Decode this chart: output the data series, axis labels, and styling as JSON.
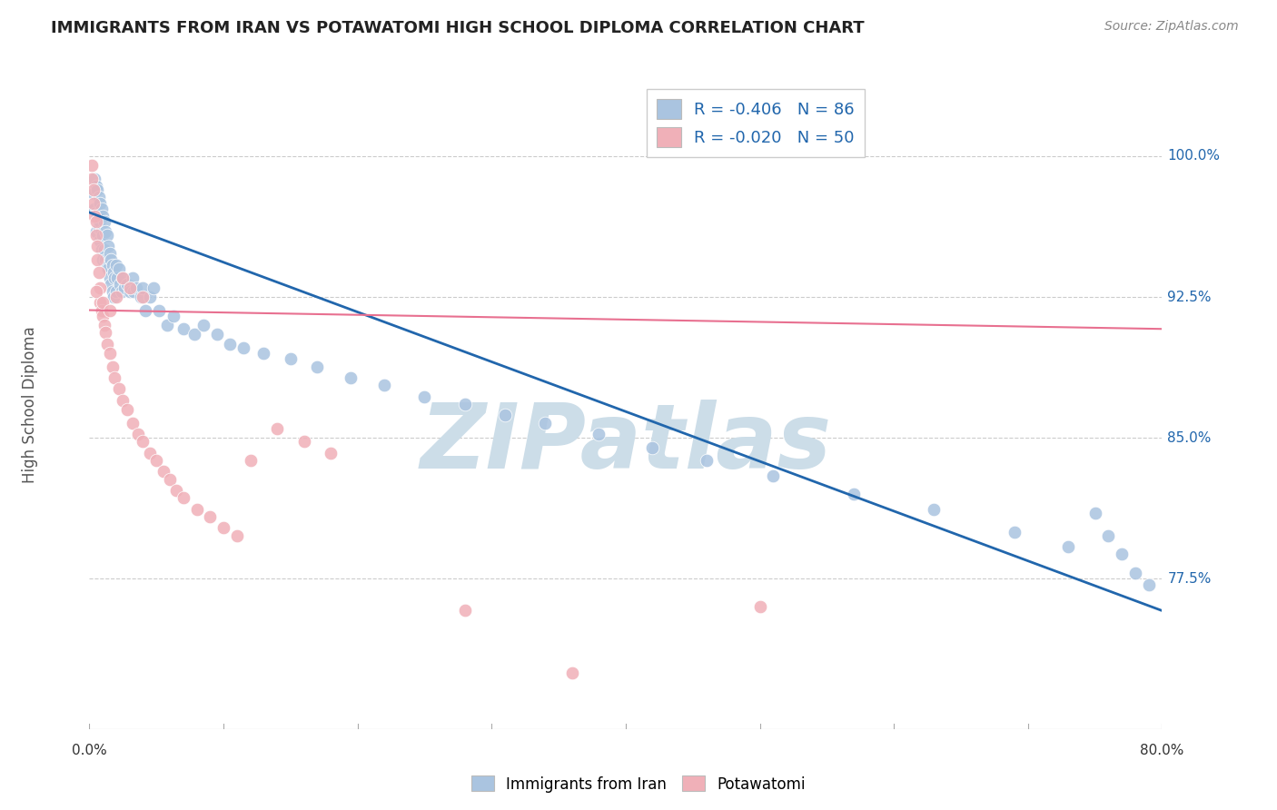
{
  "title": "IMMIGRANTS FROM IRAN VS POTAWATOMI HIGH SCHOOL DIPLOMA CORRELATION CHART",
  "source": "Source: ZipAtlas.com",
  "ylabel": "High School Diploma",
  "ytick_labels": [
    "100.0%",
    "92.5%",
    "85.0%",
    "77.5%"
  ],
  "ytick_values": [
    1.0,
    0.925,
    0.85,
    0.775
  ],
  "xtick_labels": [
    "0.0%",
    "80.0%"
  ],
  "xlim": [
    0.0,
    0.8
  ],
  "ylim": [
    0.695,
    1.04
  ],
  "background_color": "#ffffff",
  "grid_color": "#cccccc",
  "watermark_text": "ZIPatlas",
  "watermark_color": "#ccdde8",
  "legend_blue_label": "R = -0.406   N = 86",
  "legend_pink_label": "R = -0.020   N = 50",
  "blue_color": "#aac4e0",
  "pink_color": "#f0b0b8",
  "line_blue_color": "#2166ac",
  "line_pink_color": "#e87090",
  "text_color": "#2166ac",
  "blue_scatter_x": [
    0.003,
    0.004,
    0.004,
    0.005,
    0.005,
    0.005,
    0.006,
    0.006,
    0.007,
    0.007,
    0.007,
    0.008,
    0.008,
    0.008,
    0.009,
    0.009,
    0.009,
    0.01,
    0.01,
    0.01,
    0.011,
    0.011,
    0.012,
    0.012,
    0.013,
    0.013,
    0.014,
    0.014,
    0.015,
    0.015,
    0.016,
    0.016,
    0.017,
    0.017,
    0.018,
    0.018,
    0.019,
    0.02,
    0.02,
    0.021,
    0.022,
    0.023,
    0.024,
    0.025,
    0.026,
    0.028,
    0.03,
    0.032,
    0.033,
    0.035,
    0.038,
    0.04,
    0.042,
    0.045,
    0.048,
    0.052,
    0.058,
    0.063,
    0.07,
    0.078,
    0.085,
    0.095,
    0.105,
    0.115,
    0.13,
    0.15,
    0.17,
    0.195,
    0.22,
    0.25,
    0.28,
    0.31,
    0.34,
    0.38,
    0.42,
    0.46,
    0.51,
    0.57,
    0.63,
    0.69,
    0.73,
    0.75,
    0.76,
    0.77,
    0.78,
    0.79
  ],
  "blue_scatter_y": [
    0.98,
    0.988,
    0.972,
    0.984,
    0.97,
    0.96,
    0.982,
    0.968,
    0.978,
    0.97,
    0.962,
    0.975,
    0.965,
    0.955,
    0.972,
    0.96,
    0.95,
    0.968,
    0.958,
    0.945,
    0.965,
    0.95,
    0.96,
    0.945,
    0.958,
    0.942,
    0.952,
    0.94,
    0.948,
    0.935,
    0.945,
    0.932,
    0.942,
    0.928,
    0.938,
    0.925,
    0.935,
    0.942,
    0.928,
    0.935,
    0.94,
    0.932,
    0.928,
    0.935,
    0.93,
    0.932,
    0.928,
    0.935,
    0.928,
    0.93,
    0.925,
    0.93,
    0.918,
    0.925,
    0.93,
    0.918,
    0.91,
    0.915,
    0.908,
    0.905,
    0.91,
    0.905,
    0.9,
    0.898,
    0.895,
    0.892,
    0.888,
    0.882,
    0.878,
    0.872,
    0.868,
    0.862,
    0.858,
    0.852,
    0.845,
    0.838,
    0.83,
    0.82,
    0.812,
    0.8,
    0.792,
    0.81,
    0.798,
    0.788,
    0.778,
    0.772
  ],
  "pink_scatter_x": [
    0.002,
    0.002,
    0.003,
    0.003,
    0.004,
    0.005,
    0.005,
    0.006,
    0.006,
    0.007,
    0.008,
    0.008,
    0.009,
    0.01,
    0.011,
    0.012,
    0.013,
    0.015,
    0.017,
    0.019,
    0.022,
    0.025,
    0.028,
    0.032,
    0.036,
    0.04,
    0.045,
    0.05,
    0.055,
    0.06,
    0.065,
    0.07,
    0.08,
    0.09,
    0.1,
    0.11,
    0.12,
    0.14,
    0.16,
    0.18,
    0.005,
    0.01,
    0.015,
    0.02,
    0.025,
    0.03,
    0.04,
    0.28,
    0.36,
    0.5
  ],
  "pink_scatter_y": [
    0.995,
    0.988,
    0.982,
    0.975,
    0.968,
    0.965,
    0.958,
    0.952,
    0.945,
    0.938,
    0.93,
    0.922,
    0.918,
    0.915,
    0.91,
    0.906,
    0.9,
    0.895,
    0.888,
    0.882,
    0.876,
    0.87,
    0.865,
    0.858,
    0.852,
    0.848,
    0.842,
    0.838,
    0.832,
    0.828,
    0.822,
    0.818,
    0.812,
    0.808,
    0.802,
    0.798,
    0.838,
    0.855,
    0.848,
    0.842,
    0.928,
    0.922,
    0.918,
    0.925,
    0.935,
    0.93,
    0.925,
    0.758,
    0.725,
    0.76
  ],
  "blue_line_x": [
    0.0,
    0.8
  ],
  "blue_line_y": [
    0.97,
    0.758
  ],
  "pink_line_x": [
    0.0,
    0.8
  ],
  "pink_line_y": [
    0.918,
    0.908
  ]
}
